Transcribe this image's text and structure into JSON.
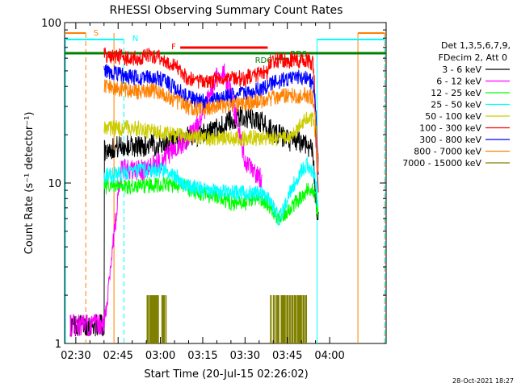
{
  "chart_data": {
    "type": "line",
    "title": "RHESSI Observing Summary Count Rates",
    "xlabel": "Start Time (20-Jul-15 02:26:02)",
    "ylabel": "Count Rate (s⁻¹ detector⁻¹)",
    "x_ticks": [
      "02:30",
      "02:45",
      "03:00",
      "03:15",
      "03:30",
      "03:45",
      "04:00"
    ],
    "x_range_minutes": [
      0,
      114
    ],
    "y_scale": "log",
    "ylim": [
      1,
      100
    ],
    "y_ticks": [
      "1",
      "10",
      "100"
    ],
    "legend_header": [
      "Det 1,3,5,6,7,9,",
      "FDecim 2, Att 0"
    ],
    "legend_placement": "right",
    "series": [
      {
        "name": "3 - 6 keV",
        "color": "#000000",
        "x": [
          2,
          14,
          14.1,
          20,
          28,
          35,
          40,
          42,
          48,
          55,
          58,
          63,
          65,
          70,
          72,
          76,
          80,
          85,
          88,
          89,
          90
        ],
        "y": [
          1.3,
          1.3,
          16,
          17,
          17,
          17.5,
          18,
          19,
          20,
          22,
          24,
          26,
          25,
          24,
          22,
          20,
          18,
          18,
          16,
          8,
          6
        ]
      },
      {
        "name": "6 - 12 keV",
        "color": "#ff00ff",
        "x": [
          2,
          14,
          20,
          25,
          28,
          30,
          34,
          38,
          42,
          45,
          48,
          50,
          52,
          54,
          56,
          58,
          60,
          62,
          64,
          66,
          68,
          70
        ],
        "y": [
          1.3,
          1.3,
          12,
          12,
          12,
          12.5,
          13.5,
          16,
          18,
          20,
          24,
          30,
          38,
          45,
          50,
          42,
          30,
          20,
          14,
          12,
          11,
          11
        ]
      },
      {
        "name": "12 - 25 keV",
        "color": "#00ff00",
        "x": [
          14,
          20,
          28,
          35,
          42,
          45,
          50,
          55,
          60,
          64,
          68,
          72,
          76,
          80,
          86,
          88,
          89,
          90
        ],
        "y": [
          9.5,
          9.5,
          9.6,
          9.8,
          9.6,
          9,
          8.5,
          8,
          7.5,
          7.5,
          8,
          7.5,
          6,
          7,
          9,
          9,
          8,
          6
        ]
      },
      {
        "name": "25 - 50 keV",
        "color": "#00ffff",
        "x": [
          14,
          20,
          28,
          35,
          40,
          42,
          45,
          50,
          55,
          60,
          65,
          70,
          72,
          74,
          76,
          78,
          80,
          84,
          86,
          88,
          89,
          90
        ],
        "y": [
          11,
          11.5,
          12,
          12,
          11,
          10,
          9.5,
          9,
          8.8,
          8.7,
          8.7,
          8.5,
          8,
          7,
          6,
          7,
          9,
          12,
          13,
          12,
          10,
          7
        ]
      },
      {
        "name": "50 - 100 keV",
        "color": "#cccc00",
        "x": [
          14,
          20,
          25,
          30,
          35,
          40,
          45,
          50,
          55,
          60,
          65,
          70,
          75,
          80,
          85,
          88,
          89,
          90
        ],
        "y": [
          22,
          22,
          22,
          21,
          20.5,
          20,
          19.5,
          19,
          19,
          19,
          19,
          19,
          19,
          19,
          25,
          25,
          20,
          14
        ]
      },
      {
        "name": "100 - 300 keV",
        "color": "#ff0000",
        "x": [
          14,
          18,
          22,
          26,
          30,
          35,
          40,
          43,
          46,
          50,
          55,
          60,
          64,
          68,
          72,
          73,
          78,
          82,
          86,
          88,
          88.5,
          89,
          90
        ],
        "y": [
          63,
          62,
          60,
          60,
          63,
          60,
          52,
          46,
          43,
          43,
          44,
          45,
          45,
          47,
          50,
          58,
          58,
          58,
          58,
          56,
          46,
          20,
          9
        ]
      },
      {
        "name": "300 - 800 keV",
        "color": "#0000ff",
        "x": [
          14,
          18,
          22,
          26,
          30,
          35,
          40,
          43,
          46,
          50,
          55,
          60,
          64,
          68,
          72,
          74,
          78,
          82,
          86,
          88,
          89,
          90
        ],
        "y": [
          50,
          48,
          46,
          45,
          46,
          44,
          38,
          35,
          33,
          32,
          34,
          35,
          36,
          38,
          40,
          42,
          44,
          46,
          45,
          42,
          30,
          12
        ]
      },
      {
        "name": "800 - 7000 keV",
        "color": "#ff8000",
        "x": [
          14,
          18,
          22,
          26,
          30,
          35,
          40,
          43,
          46,
          50,
          55,
          60,
          64,
          68,
          72,
          74,
          78,
          82,
          86,
          88,
          89,
          90
        ],
        "y": [
          40,
          39,
          38,
          37,
          38,
          36,
          32,
          30,
          29,
          29,
          30,
          31,
          31,
          32,
          33,
          34,
          35,
          35,
          35,
          34,
          25,
          11
        ]
      },
      {
        "name": "7000 - 15000 keV",
        "color": "#808000",
        "x": [
          29,
          29.1,
          36,
          36.1,
          73,
          73.1,
          86,
          86.1
        ],
        "y": [
          1,
          2,
          2,
          1,
          1,
          2,
          2,
          1
        ]
      }
    ],
    "annotations": [
      {
        "text": "S",
        "color": "#ff8000"
      },
      {
        "text": "N",
        "color": "#00ffff"
      },
      {
        "text": "F",
        "color": "#ff0000"
      },
      {
        "text": "RD6",
        "color": "#008000"
      },
      {
        "text": "RD9",
        "color": "#008000"
      }
    ]
  },
  "timestamp": "28-Oct-2021 18:27",
  "colors": {
    "saa": "#ff8000",
    "night": "#00ffff",
    "flare": "#ff0000",
    "decimation": "#008000"
  }
}
